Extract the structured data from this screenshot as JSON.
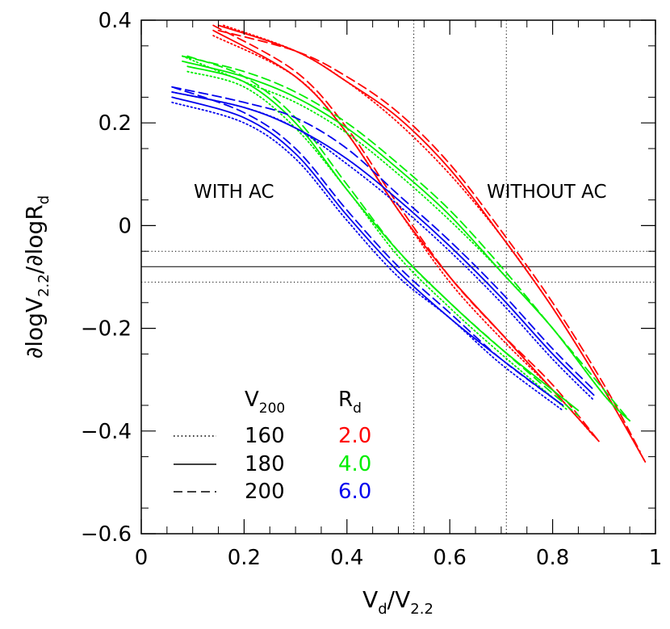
{
  "chart_data": {
    "type": "line",
    "xlabel": {
      "main": "V",
      "sub1": "d",
      "mid": "/V",
      "sub2": "2.2"
    },
    "ylabel": {
      "part1": "∂logV",
      "sub1": "2.2",
      "part2": "/∂logR",
      "sub2": "d"
    },
    "xlim": [
      0,
      1
    ],
    "ylim": [
      -0.6,
      0.4
    ],
    "x_ticks": [
      0,
      0.2,
      0.4,
      0.6,
      0.8,
      1
    ],
    "x_tick_labels": [
      "0",
      "0.2",
      "0.4",
      "0.6",
      "0.8",
      "1"
    ],
    "y_ticks": [
      -0.6,
      -0.4,
      -0.2,
      0,
      0.2,
      0.4
    ],
    "y_tick_labels": [
      "−0.6",
      "−0.4",
      "−0.2",
      "0",
      "0.2",
      "0.4"
    ],
    "annotations": {
      "with_ac": "WITH AC",
      "without_ac": "WITHOUT AC"
    },
    "reference_lines": {
      "horizontal_solid": -0.08,
      "horizontal_dotted": [
        -0.05,
        -0.11
      ],
      "vertical_dotted": [
        0.53,
        0.71
      ]
    },
    "legend": {
      "v200_header": {
        "main": "V",
        "sub": "200"
      },
      "rd_header": {
        "main": "R",
        "sub": "d"
      },
      "v200_entries": [
        {
          "label": "160",
          "style": "dotted"
        },
        {
          "label": "180",
          "style": "solid"
        },
        {
          "label": "200",
          "style": "dashed"
        }
      ],
      "rd_entries": [
        {
          "label": "2.0",
          "color": "#ff0000"
        },
        {
          "label": "4.0",
          "color": "#00ee00"
        },
        {
          "label": "6.0",
          "color": "#0000ee"
        }
      ]
    },
    "series": [
      {
        "group": "with_ac",
        "rd": "2.0",
        "v200": "160",
        "color": "#ff0000",
        "style": "dotted",
        "x": [
          0.14,
          0.3,
          0.4,
          0.5,
          0.6,
          0.7,
          0.8,
          0.88
        ],
        "y": [
          0.37,
          0.29,
          0.18,
          0.03,
          -0.11,
          -0.22,
          -0.32,
          -0.41
        ]
      },
      {
        "group": "with_ac",
        "rd": "2.0",
        "v200": "180",
        "color": "#ff0000",
        "style": "solid",
        "x": [
          0.14,
          0.3,
          0.4,
          0.5,
          0.6,
          0.7,
          0.8,
          0.89
        ],
        "y": [
          0.38,
          0.29,
          0.18,
          0.03,
          -0.1,
          -0.21,
          -0.32,
          -0.42
        ]
      },
      {
        "group": "with_ac",
        "rd": "2.0",
        "v200": "200",
        "color": "#ff0000",
        "style": "dashed",
        "x": [
          0.14,
          0.3,
          0.4,
          0.5,
          0.6,
          0.7,
          0.8,
          0.89
        ],
        "y": [
          0.39,
          0.3,
          0.19,
          0.04,
          -0.1,
          -0.21,
          -0.31,
          -0.42
        ]
      },
      {
        "group": "with_ac",
        "rd": "4.0",
        "v200": "160",
        "color": "#00ee00",
        "style": "dotted",
        "x": [
          0.09,
          0.2,
          0.3,
          0.4,
          0.5,
          0.6,
          0.7,
          0.83
        ],
        "y": [
          0.3,
          0.27,
          0.19,
          0.07,
          -0.06,
          -0.16,
          -0.25,
          -0.36
        ]
      },
      {
        "group": "with_ac",
        "rd": "4.0",
        "v200": "180",
        "color": "#00ee00",
        "style": "solid",
        "x": [
          0.09,
          0.2,
          0.3,
          0.4,
          0.5,
          0.6,
          0.7,
          0.85
        ],
        "y": [
          0.31,
          0.28,
          0.2,
          0.07,
          -0.05,
          -0.15,
          -0.24,
          -0.36
        ]
      },
      {
        "group": "with_ac",
        "rd": "4.0",
        "v200": "200",
        "color": "#00ee00",
        "style": "dashed",
        "x": [
          0.09,
          0.2,
          0.3,
          0.4,
          0.5,
          0.6,
          0.7,
          0.85
        ],
        "y": [
          0.33,
          0.29,
          0.21,
          0.08,
          -0.05,
          -0.15,
          -0.24,
          -0.37
        ]
      },
      {
        "group": "with_ac",
        "rd": "6.0",
        "v200": "160",
        "color": "#0000ee",
        "style": "dotted",
        "x": [
          0.06,
          0.2,
          0.3,
          0.4,
          0.5,
          0.6,
          0.7,
          0.82
        ],
        "y": [
          0.24,
          0.2,
          0.13,
          0.01,
          -0.1,
          -0.18,
          -0.27,
          -0.36
        ]
      },
      {
        "group": "with_ac",
        "rd": "6.0",
        "v200": "180",
        "color": "#0000ee",
        "style": "solid",
        "x": [
          0.06,
          0.2,
          0.3,
          0.4,
          0.5,
          0.6,
          0.7,
          0.82
        ],
        "y": [
          0.25,
          0.21,
          0.14,
          0.02,
          -0.09,
          -0.18,
          -0.26,
          -0.35
        ]
      },
      {
        "group": "with_ac",
        "rd": "6.0",
        "v200": "200",
        "color": "#0000ee",
        "style": "dashed",
        "x": [
          0.06,
          0.2,
          0.3,
          0.4,
          0.5,
          0.6,
          0.7,
          0.82
        ],
        "y": [
          0.27,
          0.22,
          0.15,
          0.03,
          -0.08,
          -0.17,
          -0.26,
          -0.35
        ]
      },
      {
        "group": "without_ac",
        "rd": "2.0",
        "v200": "160",
        "color": "#ff0000",
        "style": "dotted",
        "x": [
          0.16,
          0.3,
          0.4,
          0.5,
          0.6,
          0.7,
          0.8,
          0.9,
          0.98
        ],
        "y": [
          0.39,
          0.34,
          0.28,
          0.2,
          0.1,
          -0.02,
          -0.16,
          -0.32,
          -0.46
        ]
      },
      {
        "group": "without_ac",
        "rd": "2.0",
        "v200": "180",
        "color": "#ff0000",
        "style": "solid",
        "x": [
          0.15,
          0.3,
          0.4,
          0.5,
          0.6,
          0.7,
          0.8,
          0.9,
          0.98
        ],
        "y": [
          0.39,
          0.34,
          0.28,
          0.21,
          0.11,
          -0.02,
          -0.16,
          -0.32,
          -0.46
        ]
      },
      {
        "group": "without_ac",
        "rd": "2.0",
        "v200": "200",
        "color": "#ff0000",
        "style": "dashed",
        "x": [
          0.15,
          0.3,
          0.4,
          0.5,
          0.6,
          0.7,
          0.8,
          0.9,
          0.97
        ],
        "y": [
          0.38,
          0.34,
          0.29,
          0.22,
          0.12,
          -0.01,
          -0.15,
          -0.31,
          -0.44
        ]
      },
      {
        "group": "without_ac",
        "rd": "4.0",
        "v200": "160",
        "color": "#00ee00",
        "style": "dotted",
        "x": [
          0.08,
          0.2,
          0.3,
          0.4,
          0.5,
          0.6,
          0.7,
          0.8,
          0.9,
          0.95
        ],
        "y": [
          0.33,
          0.28,
          0.24,
          0.18,
          0.1,
          0.01,
          -0.09,
          -0.2,
          -0.33,
          -0.38
        ]
      },
      {
        "group": "without_ac",
        "rd": "4.0",
        "v200": "180",
        "color": "#00ee00",
        "style": "solid",
        "x": [
          0.08,
          0.2,
          0.3,
          0.4,
          0.5,
          0.6,
          0.7,
          0.8,
          0.9,
          0.95
        ],
        "y": [
          0.32,
          0.29,
          0.25,
          0.19,
          0.11,
          0.02,
          -0.09,
          -0.2,
          -0.33,
          -0.38
        ]
      },
      {
        "group": "without_ac",
        "rd": "4.0",
        "v200": "200",
        "color": "#00ee00",
        "style": "dashed",
        "x": [
          0.08,
          0.2,
          0.3,
          0.4,
          0.5,
          0.6,
          0.7,
          0.8,
          0.9,
          0.95
        ],
        "y": [
          0.33,
          0.3,
          0.26,
          0.2,
          0.12,
          0.03,
          -0.08,
          -0.2,
          -0.32,
          -0.38
        ]
      },
      {
        "group": "without_ac",
        "rd": "6.0",
        "v200": "160",
        "color": "#0000ee",
        "style": "dotted",
        "x": [
          0.06,
          0.2,
          0.3,
          0.4,
          0.5,
          0.6,
          0.7,
          0.8,
          0.88
        ],
        "y": [
          0.26,
          0.23,
          0.19,
          0.12,
          0.04,
          -0.05,
          -0.15,
          -0.26,
          -0.34
        ]
      },
      {
        "group": "without_ac",
        "rd": "6.0",
        "v200": "180",
        "color": "#0000ee",
        "style": "solid",
        "x": [
          0.06,
          0.2,
          0.3,
          0.4,
          0.5,
          0.6,
          0.7,
          0.8,
          0.88
        ],
        "y": [
          0.26,
          0.23,
          0.19,
          0.13,
          0.05,
          -0.04,
          -0.14,
          -0.25,
          -0.33
        ]
      },
      {
        "group": "without_ac",
        "rd": "6.0",
        "v200": "200",
        "color": "#0000ee",
        "style": "dashed",
        "x": [
          0.06,
          0.2,
          0.3,
          0.4,
          0.5,
          0.6,
          0.7,
          0.8,
          0.88
        ],
        "y": [
          0.27,
          0.24,
          0.21,
          0.15,
          0.06,
          -0.03,
          -0.13,
          -0.24,
          -0.32
        ]
      }
    ]
  }
}
